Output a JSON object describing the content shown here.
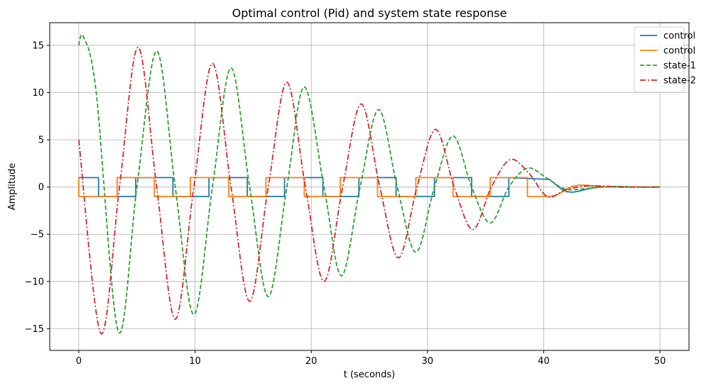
{
  "chart_data": {
    "type": "line",
    "title": "Optimal control (Pid) and system state response",
    "xlabel": "t (seconds)",
    "ylabel": "Amplitude",
    "xlim": [
      -2.5,
      52.5
    ],
    "ylim": [
      -17.3,
      17.4
    ],
    "xticks": [
      0,
      10,
      20,
      30,
      40,
      50
    ],
    "xtick_labels": [
      "0",
      "10",
      "20",
      "30",
      "40",
      "50"
    ],
    "yticks": [
      -15,
      -10,
      -5,
      0,
      5,
      10,
      15
    ],
    "ytick_labels": [
      "−15",
      "−10",
      "−5",
      "0",
      "5",
      "10",
      "15"
    ],
    "grid": true,
    "legend_position": "top-right",
    "series": [
      {
        "name": "control",
        "color": "#1f77b4",
        "style": "solid",
        "x": [
          0,
          1.7,
          1.7,
          4.9,
          4.9,
          8.1,
          8.1,
          11.2,
          11.2,
          14.5,
          14.5,
          17.7,
          17.7,
          21.0,
          21.0,
          24.1,
          24.1,
          27.3,
          27.3,
          30.6,
          30.6,
          33.8,
          33.8,
          37.0,
          37.0,
          40.5,
          41.0,
          41.5,
          42.0,
          42.5,
          43.0,
          43.5,
          44.0,
          44.5,
          45.0,
          46.0,
          47.0,
          48.0,
          50.0
        ],
        "y": [
          1,
          1,
          -1,
          -1,
          1,
          1,
          -1,
          -1,
          1,
          1,
          -1,
          -1,
          1,
          1,
          -1,
          -1,
          1,
          1,
          -1,
          -1,
          1,
          1,
          -1,
          -1,
          1,
          0.8,
          0.3,
          -0.2,
          -0.5,
          -0.55,
          -0.45,
          -0.3,
          -0.15,
          -0.05,
          0.0,
          0.05,
          0.03,
          0.0,
          0.0
        ]
      },
      {
        "name": "control",
        "color": "#ff7f0e",
        "style": "solid",
        "x": [
          0,
          0,
          3.3,
          3.3,
          6.5,
          6.5,
          9.6,
          9.6,
          12.9,
          12.9,
          16.1,
          16.1,
          19.4,
          19.4,
          22.5,
          22.5,
          25.7,
          25.7,
          29.0,
          29.0,
          32.2,
          32.2,
          35.4,
          35.4,
          38.6,
          38.6,
          40.5,
          41.0,
          41.5,
          42.0,
          42.5,
          43.0,
          43.5,
          44.0,
          44.5,
          45.0,
          46.0,
          47.0,
          48.0,
          50.0
        ],
        "y": [
          1,
          -1,
          -1,
          1,
          1,
          -1,
          -1,
          1,
          1,
          -1,
          -1,
          1,
          1,
          -1,
          -1,
          1,
          1,
          -1,
          -1,
          1,
          1,
          -1,
          -1,
          1,
          1,
          -1,
          -1,
          -0.9,
          -0.6,
          -0.2,
          0.1,
          0.2,
          0.2,
          0.15,
          0.1,
          0.05,
          0.0,
          -0.02,
          0.0,
          0.0
        ]
      },
      {
        "name": "state-1",
        "color": "#2ca02c",
        "style": "dashed",
        "x": [
          0,
          0.4,
          1.5,
          3.4,
          5.0,
          6.7,
          8.3,
          9.9,
          11.5,
          13.1,
          14.7,
          16.3,
          17.9,
          19.4,
          21.1,
          22.6,
          24.2,
          25.8,
          27.4,
          29.0,
          30.6,
          32.2,
          33.8,
          35.4,
          37.0,
          38.6,
          40.2,
          41.8,
          43.4,
          45.0,
          46.6,
          48.2,
          50.0
        ],
        "y": [
          15.0,
          15.9,
          10.0,
          -15.3,
          0.0,
          14.4,
          0.0,
          -13.5,
          0.0,
          12.6,
          0.0,
          -11.6,
          0.0,
          10.6,
          0.0,
          -9.4,
          0.0,
          8.2,
          0.0,
          -6.9,
          0.0,
          5.4,
          0.0,
          -3.8,
          0.0,
          2.0,
          1.0,
          -0.2,
          -0.2,
          0.0,
          0.05,
          0.0,
          0.0
        ]
      },
      {
        "name": "state-2",
        "color": "#d62728",
        "style": "dashdot",
        "x": [
          0,
          1.9,
          3.5,
          5.1,
          6.7,
          8.3,
          9.9,
          11.5,
          13.1,
          14.7,
          16.3,
          17.9,
          19.5,
          21.1,
          22.7,
          24.3,
          25.9,
          27.5,
          29.1,
          30.7,
          32.3,
          33.9,
          35.5,
          37.1,
          38.7,
          40.3,
          41.9,
          43.5,
          45.1,
          46.7,
          48.3,
          50.0
        ],
        "y": [
          5.0,
          -15.5,
          0.0,
          14.8,
          0.0,
          -14.0,
          0.0,
          13.1,
          0.0,
          -12.1,
          0.0,
          11.1,
          0.0,
          -10.0,
          0.0,
          8.8,
          0.0,
          -7.5,
          0.0,
          6.1,
          0.0,
          -4.5,
          0.0,
          2.9,
          1.5,
          -1.0,
          -0.3,
          0.1,
          0.1,
          0.0,
          0.0,
          0.0
        ]
      }
    ]
  }
}
